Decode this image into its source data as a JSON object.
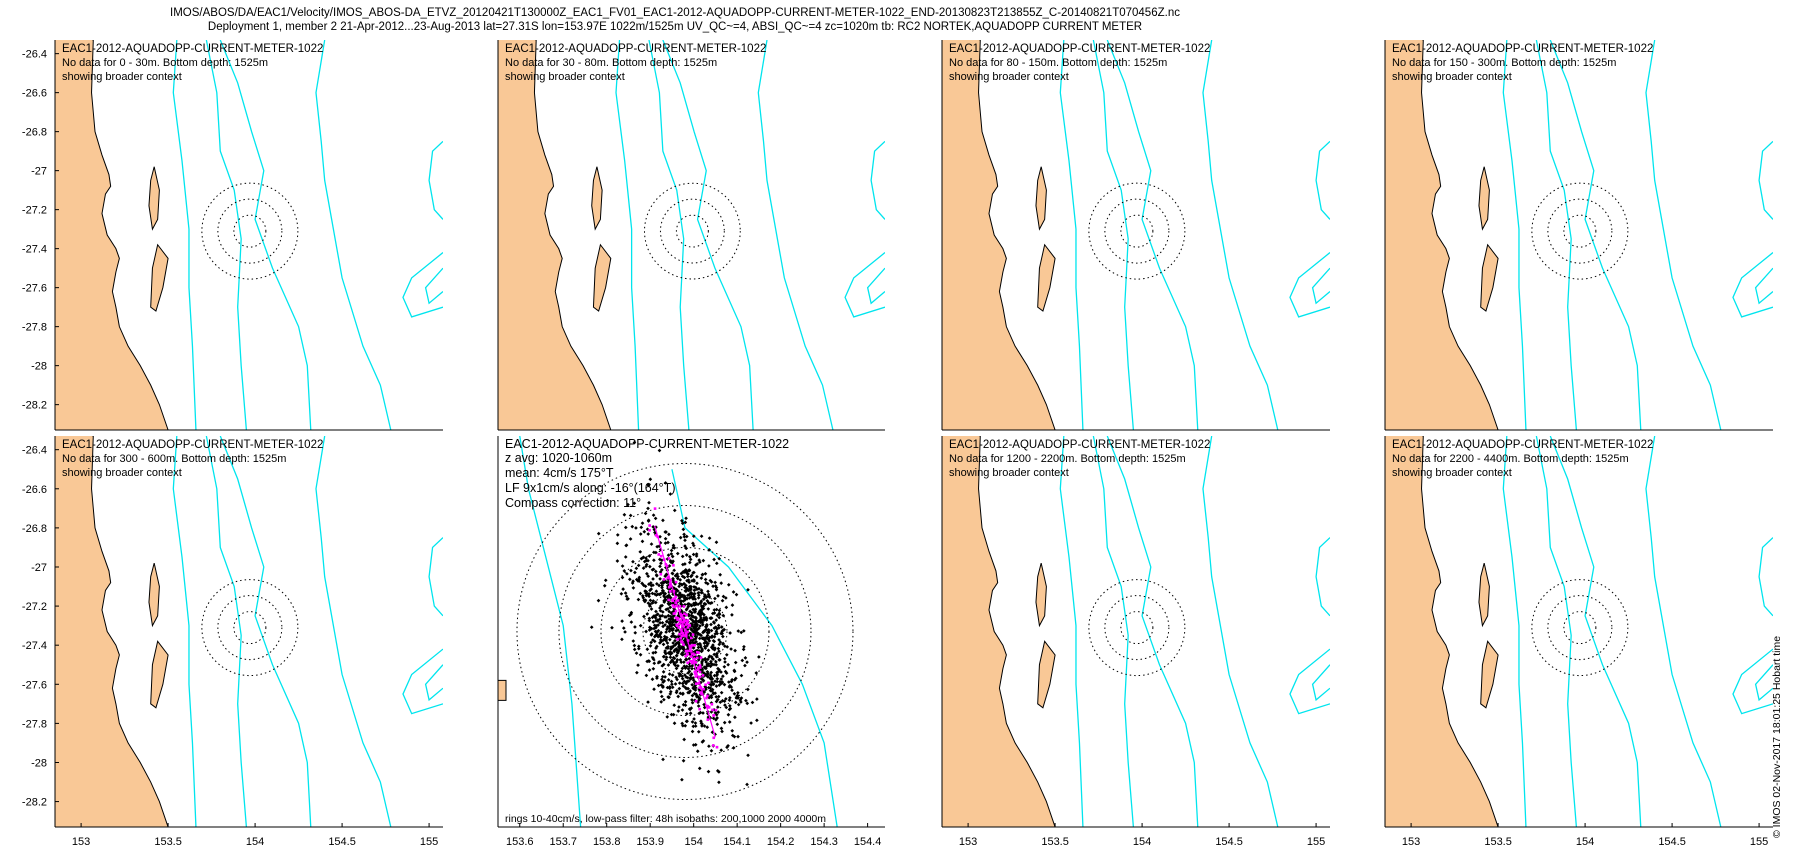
{
  "header": {
    "line1": "IMOS/ABOS/DA/EAC1/Velocity/IMOS_ABOS-DA_ETVZ_20120421T130000Z_EAC1_FV01_EAC1-2012-AQUADOPP-CURRENT-METER-1022_END-20130823T213855Z_C-20140821T070456Z.nc",
    "line2": "Deployment 1, member 2 21-Apr-2012...23-Aug-2013 lat=27.31S lon=153.97E 1022m/1525m UV_QC~=4, ABSI_QC~=4 zc=1020m tb: RC2 NORTEK,AQUADOPP CURRENT METER"
  },
  "footer_stamp": "© IMOS 02-Nov-2017 18:01:25 Hobart time",
  "colors": {
    "land": "#F9C896",
    "coast": "#000000",
    "isobath": "#00E5EE",
    "scatter": "#000000",
    "lowpass": "#FF00FF",
    "rings": "#000000"
  },
  "chart_data": [
    {
      "type": "scatter",
      "panel": "0-30m",
      "title": "EAC1-2012-AQUADOPP-CURRENT-METER-1022",
      "notes": [
        "No data for 0 - 30m. Bottom depth: 1525m",
        "showing broader context"
      ],
      "yticks": [
        "-26.4",
        "-26.6",
        "-26.8",
        "-27",
        "-27.2",
        "-27.4",
        "-27.6",
        "-27.8",
        "-28",
        "-28.2"
      ],
      "xticks": [],
      "xlim": [
        152.85,
        155.08
      ],
      "ylim": [
        -28.33,
        -26.33
      ],
      "series": []
    },
    {
      "type": "scatter",
      "panel": "30-80m",
      "title": "EAC1-2012-AQUADOPP-CURRENT-METER-1022",
      "notes": [
        "No data for 30 - 80m. Bottom depth: 1525m",
        "showing broader context"
      ],
      "yticks": [],
      "xticks": [],
      "xlim": [
        152.85,
        155.08
      ],
      "ylim": [
        -28.33,
        -26.33
      ],
      "series": []
    },
    {
      "type": "scatter",
      "panel": "80-150m",
      "title": "EAC1-2012-AQUADOPP-CURRENT-METER-1022",
      "notes": [
        "No data for 80 - 150m. Bottom depth: 1525m",
        "showing broader context"
      ],
      "yticks": [],
      "xticks": [],
      "xlim": [
        152.85,
        155.08
      ],
      "ylim": [
        -28.33,
        -26.33
      ],
      "series": []
    },
    {
      "type": "scatter",
      "panel": "150-300m",
      "title": "EAC1-2012-AQUADOPP-CURRENT-METER-1022",
      "notes": [
        "No data for 150 - 300m. Bottom depth: 1525m",
        "showing broader context"
      ],
      "yticks": [],
      "xticks": [],
      "xlim": [
        152.85,
        155.08
      ],
      "ylim": [
        -28.33,
        -26.33
      ],
      "series": []
    },
    {
      "type": "scatter",
      "panel": "300-600m",
      "title": "EAC1-2012-AQUADOPP-CURRENT-METER-1022",
      "notes": [
        "No data for 300 - 600m. Bottom depth: 1525m",
        "showing broader context"
      ],
      "yticks": [
        "-26.4",
        "-26.6",
        "-26.8",
        "-27",
        "-27.2",
        "-27.4",
        "-27.6",
        "-27.8",
        "-28",
        "-28.2"
      ],
      "xticks": [
        "153",
        "153.5",
        "154",
        "154.5",
        "155"
      ],
      "xlim": [
        152.85,
        155.08
      ],
      "ylim": [
        -28.33,
        -26.33
      ],
      "series": []
    },
    {
      "type": "scatter",
      "panel": "1020-1060m",
      "title": "EAC1-2012-AQUADOPP-CURRENT-METER-1022",
      "notes": [
        "z avg: 1020-1060m",
        "mean: 4cm/s 175°T",
        "LF 9x1cm/s along: -16°(164°T)",
        "Compass correction: 11°"
      ],
      "bottom_note": "rings 10-40cm/s, low-pass filter: 48h isobaths: 200,1000 2000 4000m",
      "yticks": [],
      "xticks": [
        "153.6",
        "153.7",
        "153.8",
        "153.9",
        "154",
        "154.1",
        "154.2",
        "154.3",
        "154.4"
      ],
      "xlim": [
        153.55,
        154.44
      ],
      "ylim": [
        -28.33,
        -26.33
      ],
      "rings_cm_s": [
        10,
        20,
        30,
        40
      ],
      "series": [
        {
          "values": {
            "mean_speed_cm_s": 4,
            "mean_dir_deg_true": 175,
            "lf_major_cm_s": 9,
            "lf_minor_cm_s": 1,
            "along_dir_deg": -16
          }
        }
      ]
    },
    {
      "type": "scatter",
      "panel": "1200-2200m",
      "title": "EAC1-2012-AQUADOPP-CURRENT-METER-1022",
      "notes": [
        "No data for 1200 - 2200m. Bottom depth: 1525m",
        "showing broader context"
      ],
      "yticks": [],
      "xticks": [
        "153",
        "153.5",
        "154",
        "154.5",
        "155"
      ],
      "xlim": [
        152.85,
        155.08
      ],
      "ylim": [
        -28.33,
        -26.33
      ],
      "series": []
    },
    {
      "type": "scatter",
      "panel": "2200-4400m",
      "title": "EAC1-2012-AQUADOPP-CURRENT-METER-1022",
      "notes": [
        "No data for 2200 - 4400m. Bottom depth: 1525m",
        "showing broader context"
      ],
      "yticks": [],
      "xticks": [
        "153",
        "153.5",
        "154",
        "154.5",
        "155"
      ],
      "xlim": [
        152.85,
        155.08
      ],
      "ylim": [
        -28.33,
        -26.33
      ],
      "series": []
    }
  ]
}
